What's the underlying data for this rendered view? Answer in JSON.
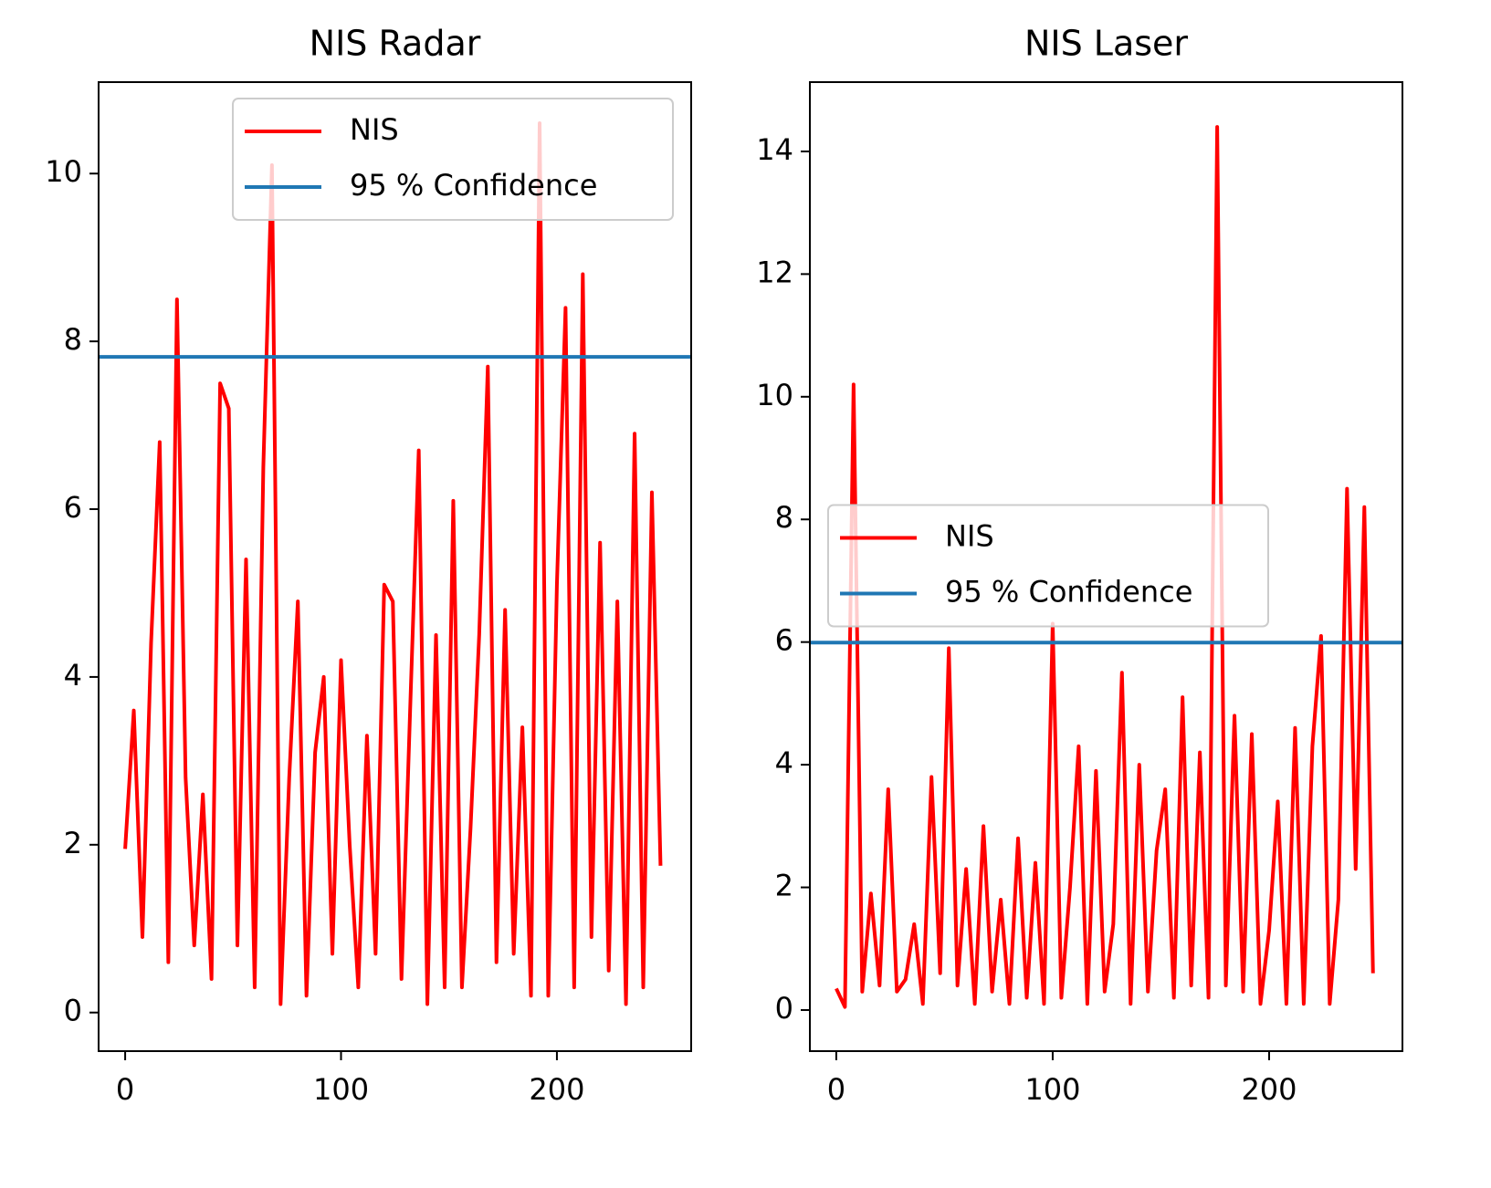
{
  "chart_data": [
    {
      "type": "line",
      "title": "NIS Radar",
      "legend": "upper right",
      "x": [
        0,
        4,
        8,
        12,
        16,
        20,
        24,
        28,
        32,
        36,
        40,
        44,
        48,
        52,
        56,
        60,
        64,
        68,
        72,
        76,
        80,
        84,
        88,
        92,
        96,
        100,
        104,
        108,
        112,
        116,
        120,
        124,
        128,
        132,
        136,
        140,
        144,
        148,
        152,
        156,
        160,
        164,
        168,
        172,
        176,
        180,
        184,
        188,
        192,
        196,
        200,
        204,
        208,
        212,
        216,
        220,
        224,
        228,
        232,
        236,
        240,
        244,
        248
      ],
      "series": [
        {
          "name": "NIS",
          "color": "#ff0000",
          "values": [
            1.95,
            3.6,
            0.9,
            4.4,
            6.8,
            0.6,
            8.5,
            2.8,
            0.8,
            2.6,
            0.4,
            7.5,
            7.2,
            0.8,
            5.4,
            0.3,
            6.5,
            10.1,
            0.1,
            2.8,
            4.9,
            0.2,
            3.1,
            4.0,
            0.7,
            4.2,
            2.0,
            0.3,
            3.3,
            0.7,
            5.1,
            4.9,
            0.4,
            3.6,
            6.7,
            0.1,
            4.5,
            0.3,
            6.1,
            0.3,
            2.2,
            4.5,
            7.7,
            0.6,
            4.8,
            0.7,
            3.4,
            0.2,
            10.6,
            0.2,
            5.1,
            8.4,
            0.3,
            8.8,
            0.9,
            5.6,
            0.5,
            4.9,
            0.1,
            6.9,
            0.3,
            6.2,
            1.75
          ]
        },
        {
          "name": "95 % Confidence",
          "color": "#1f77b4",
          "hline": 7.815
        }
      ],
      "xlim": [
        -12.3,
        262.2
      ],
      "xticks": [
        0,
        100,
        200
      ],
      "ylim": [
        -0.46,
        11.09
      ],
      "yticks": [
        0,
        2,
        4,
        6,
        8,
        10
      ]
    },
    {
      "type": "line",
      "title": "NIS Laser",
      "legend": "center left",
      "x": [
        0,
        4,
        8,
        12,
        16,
        20,
        24,
        28,
        32,
        36,
        40,
        44,
        48,
        52,
        56,
        60,
        64,
        68,
        72,
        76,
        80,
        84,
        88,
        92,
        96,
        100,
        104,
        108,
        112,
        116,
        120,
        124,
        128,
        132,
        136,
        140,
        144,
        148,
        152,
        156,
        160,
        164,
        168,
        172,
        176,
        180,
        184,
        188,
        192,
        196,
        200,
        204,
        208,
        212,
        216,
        220,
        224,
        228,
        232,
        236,
        240,
        244,
        248
      ],
      "series": [
        {
          "name": "NIS",
          "color": "#ff0000",
          "values": [
            0.35,
            0.05,
            10.2,
            0.3,
            1.9,
            0.4,
            3.6,
            0.3,
            0.5,
            1.4,
            0.1,
            3.8,
            0.6,
            5.9,
            0.4,
            2.3,
            0.1,
            3.0,
            0.3,
            1.8,
            0.1,
            2.8,
            0.2,
            2.4,
            0.1,
            6.3,
            0.2,
            2.0,
            4.3,
            0.1,
            3.9,
            0.3,
            1.4,
            5.5,
            0.1,
            4.0,
            0.3,
            2.6,
            3.6,
            0.2,
            5.1,
            0.4,
            4.2,
            0.2,
            14.4,
            0.4,
            4.8,
            0.3,
            4.5,
            0.1,
            1.3,
            3.4,
            0.1,
            4.6,
            0.1,
            4.3,
            6.1,
            0.1,
            1.8,
            8.5,
            2.3,
            8.2,
            0.6
          ]
        },
        {
          "name": "95 % Confidence",
          "color": "#1f77b4",
          "hline": 5.991
        }
      ],
      "xlim": [
        -12.2,
        261.6
      ],
      "xticks": [
        0,
        100,
        200
      ],
      "ylim": [
        -0.67,
        15.13
      ],
      "yticks": [
        0,
        2,
        4,
        6,
        8,
        10,
        12,
        14
      ]
    }
  ]
}
